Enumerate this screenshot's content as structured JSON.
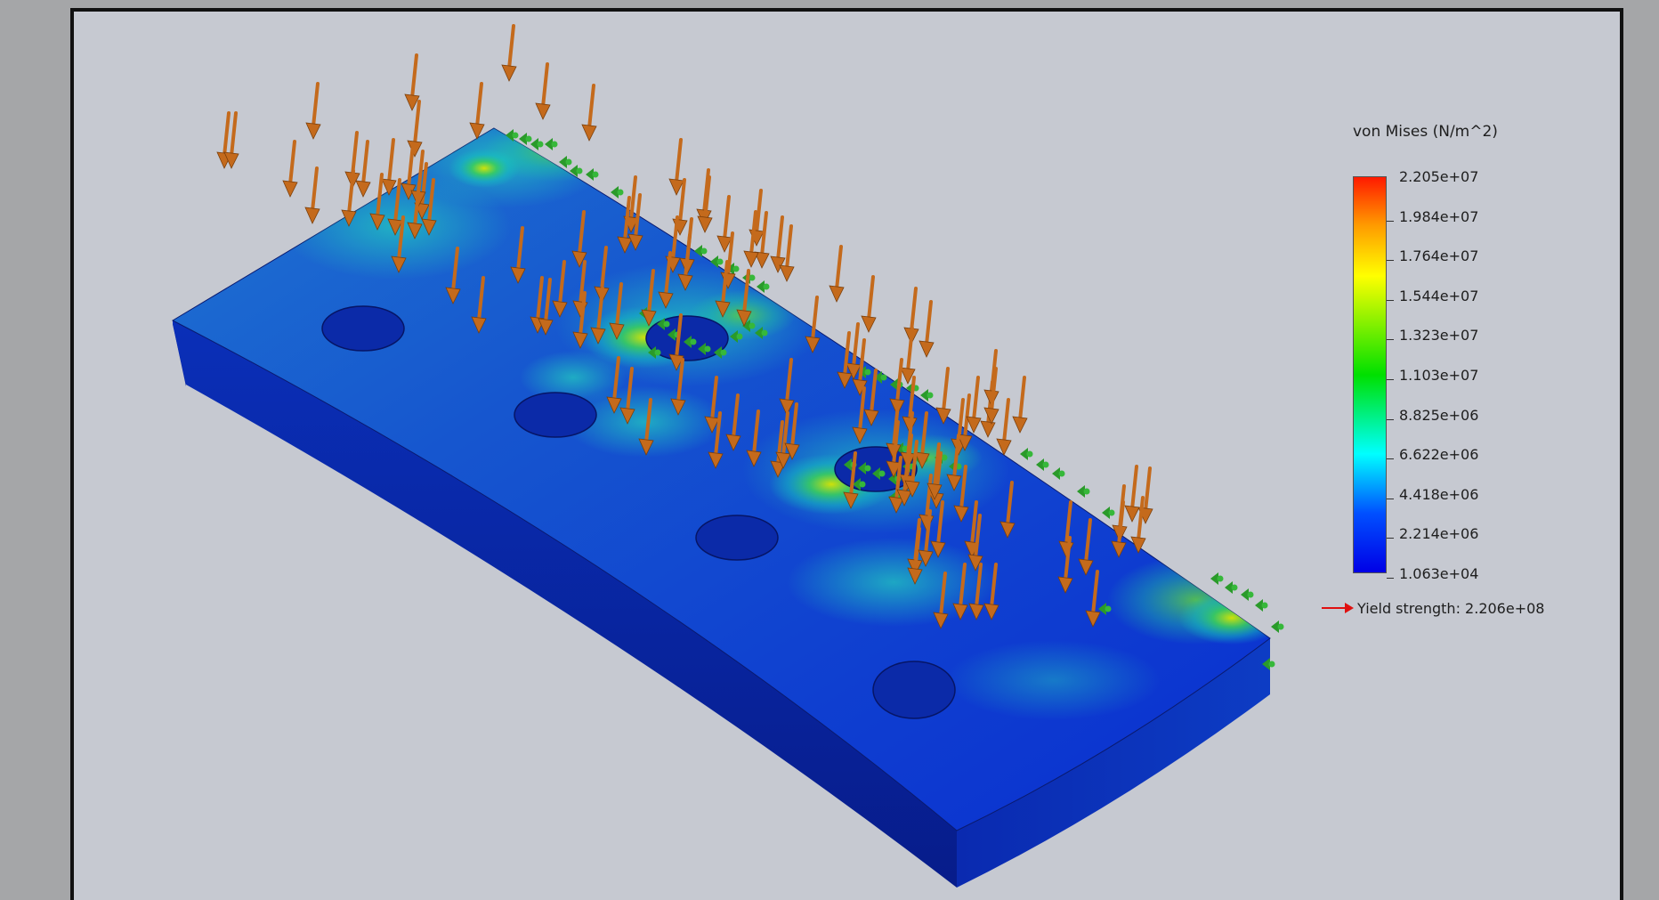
{
  "plot": {
    "title": "von Mises (N/m^2)",
    "yield_label": "Yield strength: 2.206e+08",
    "ticks": [
      {
        "label": "2.205e+07"
      },
      {
        "label": "1.984e+07"
      },
      {
        "label": "1.764e+07"
      },
      {
        "label": "1.544e+07"
      },
      {
        "label": "1.323e+07"
      },
      {
        "label": "1.103e+07"
      },
      {
        "label": "8.825e+06"
      },
      {
        "label": "6.622e+06"
      },
      {
        "label": "4.418e+06"
      },
      {
        "label": "2.214e+06"
      },
      {
        "label": "1.063e+04"
      }
    ],
    "colors": {
      "max": "#ff1a00",
      "high": "#ff9900",
      "mid_high": "#ffff00",
      "mid": "#00e000",
      "mid_low": "#00ffff",
      "low": "#0050ff",
      "min": "#0000e6",
      "load_arrow": "#c46a1c",
      "fixture": "#2a9a2a",
      "yield_marker": "#e01010"
    }
  }
}
